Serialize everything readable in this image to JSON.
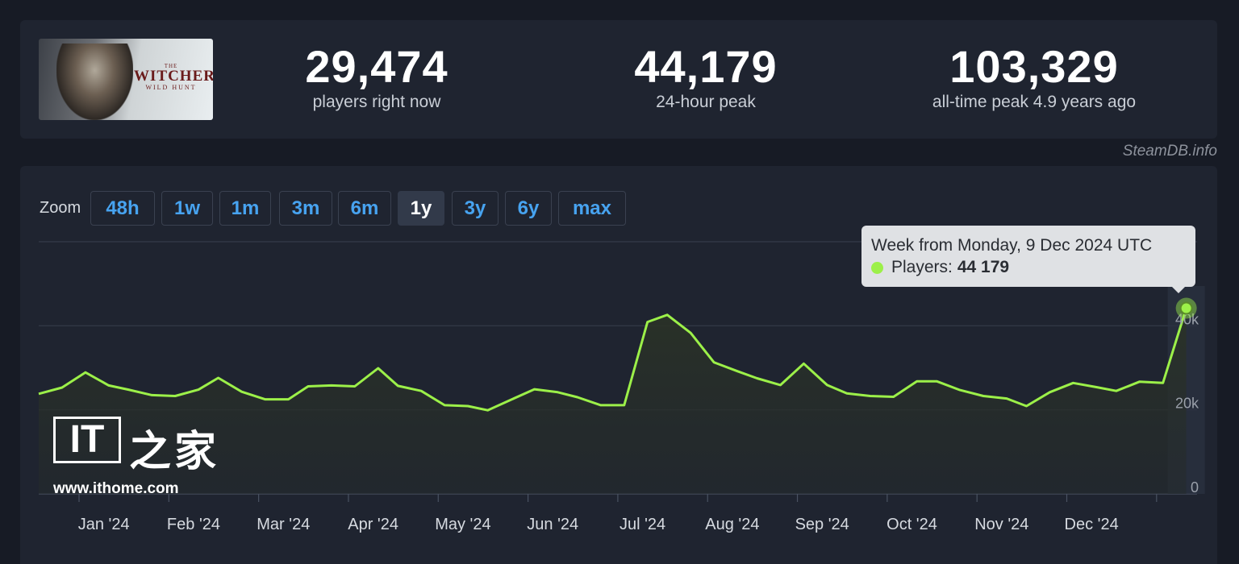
{
  "stats": {
    "game_logo_text": {
      "the": "THE",
      "title": "WITCHER",
      "subtitle": "WILD HUNT"
    },
    "current": {
      "value": "29,474",
      "label": "players right now"
    },
    "peak24": {
      "value": "44,179",
      "label": "24-hour peak"
    },
    "alltime": {
      "value": "103,329",
      "label": "all-time peak 4.9 years ago"
    }
  },
  "watermark": "SteamDB.info",
  "zoom": {
    "label": "Zoom",
    "options": [
      "48h",
      "1w",
      "1m",
      "3m",
      "6m",
      "1y",
      "3y",
      "6y",
      "max"
    ],
    "active": "1y"
  },
  "tooltip": {
    "title": "Week from Monday, 9 Dec 2024 UTC",
    "series_label": "Players:",
    "value": "44 179"
  },
  "colors": {
    "line": "#9cf049",
    "background": "#171b25",
    "card": "#1f2430",
    "zoom_link": "#47a3f0"
  },
  "ithome": {
    "logo_text": "IT",
    "cn_text": "之家",
    "url": "www.ithome.com"
  },
  "chart_data": {
    "type": "line",
    "ylim": [
      0,
      60000
    ],
    "yticks": [
      "0",
      "20k",
      "40k"
    ],
    "x_tick_labels": [
      "Jan '24",
      "Feb '24",
      "Mar '24",
      "Apr '24",
      "May '24",
      "Jun '24",
      "Jul '24",
      "Aug '24",
      "Sep '24",
      "Oct '24",
      "Nov '24",
      "Dec '24"
    ],
    "x_label_month_index": [
      0.5,
      1.5,
      2.5,
      3.5,
      4.5,
      5.5,
      6.5,
      7.5,
      8.5,
      9.5,
      10.5,
      11.5
    ],
    "series": [
      {
        "values": [
          {
            "x": 0.0,
            "y": 23800
          },
          {
            "x": 0.26,
            "y": 25300
          },
          {
            "x": 0.52,
            "y": 28900
          },
          {
            "x": 0.78,
            "y": 25800
          },
          {
            "x": 1.0,
            "y": 24800
          },
          {
            "x": 1.26,
            "y": 23500
          },
          {
            "x": 1.52,
            "y": 23300
          },
          {
            "x": 1.78,
            "y": 24800
          },
          {
            "x": 2.0,
            "y": 27600
          },
          {
            "x": 2.26,
            "y": 24300
          },
          {
            "x": 2.52,
            "y": 22500
          },
          {
            "x": 2.78,
            "y": 22500
          },
          {
            "x": 3.0,
            "y": 25600
          },
          {
            "x": 3.26,
            "y": 25800
          },
          {
            "x": 3.52,
            "y": 25600
          },
          {
            "x": 3.78,
            "y": 29900
          },
          {
            "x": 4.0,
            "y": 25700
          },
          {
            "x": 4.26,
            "y": 24500
          },
          {
            "x": 4.52,
            "y": 21100
          },
          {
            "x": 4.78,
            "y": 20900
          },
          {
            "x": 5.0,
            "y": 19900
          },
          {
            "x": 5.26,
            "y": 22400
          },
          {
            "x": 5.52,
            "y": 24900
          },
          {
            "x": 5.78,
            "y": 24200
          },
          {
            "x": 6.0,
            "y": 23000
          },
          {
            "x": 6.26,
            "y": 21100
          },
          {
            "x": 6.52,
            "y": 21100
          },
          {
            "x": 6.78,
            "y": 40900
          },
          {
            "x": 7.0,
            "y": 42600
          },
          {
            "x": 7.26,
            "y": 38300
          },
          {
            "x": 7.52,
            "y": 31300
          },
          {
            "x": 7.78,
            "y": 29200
          },
          {
            "x": 8.0,
            "y": 27500
          },
          {
            "x": 8.26,
            "y": 25900
          },
          {
            "x": 8.52,
            "y": 31000
          },
          {
            "x": 8.78,
            "y": 25900
          },
          {
            "x": 9.0,
            "y": 23900
          },
          {
            "x": 9.26,
            "y": 23300
          },
          {
            "x": 9.52,
            "y": 23100
          },
          {
            "x": 9.78,
            "y": 26800
          },
          {
            "x": 10.0,
            "y": 26800
          },
          {
            "x": 10.26,
            "y": 24700
          },
          {
            "x": 10.52,
            "y": 23300
          },
          {
            "x": 10.78,
            "y": 22700
          },
          {
            "x": 11.0,
            "y": 20900
          },
          {
            "x": 11.26,
            "y": 24200
          },
          {
            "x": 11.52,
            "y": 26400
          },
          {
            "x": 11.78,
            "y": 25400
          },
          {
            "x": 12.0,
            "y": 24500
          },
          {
            "x": 12.26,
            "y": 26700
          },
          {
            "x": 12.52,
            "y": 26400
          },
          {
            "x": 12.78,
            "y": 44179
          }
        ]
      }
    ],
    "legend": "none",
    "grid": true
  }
}
